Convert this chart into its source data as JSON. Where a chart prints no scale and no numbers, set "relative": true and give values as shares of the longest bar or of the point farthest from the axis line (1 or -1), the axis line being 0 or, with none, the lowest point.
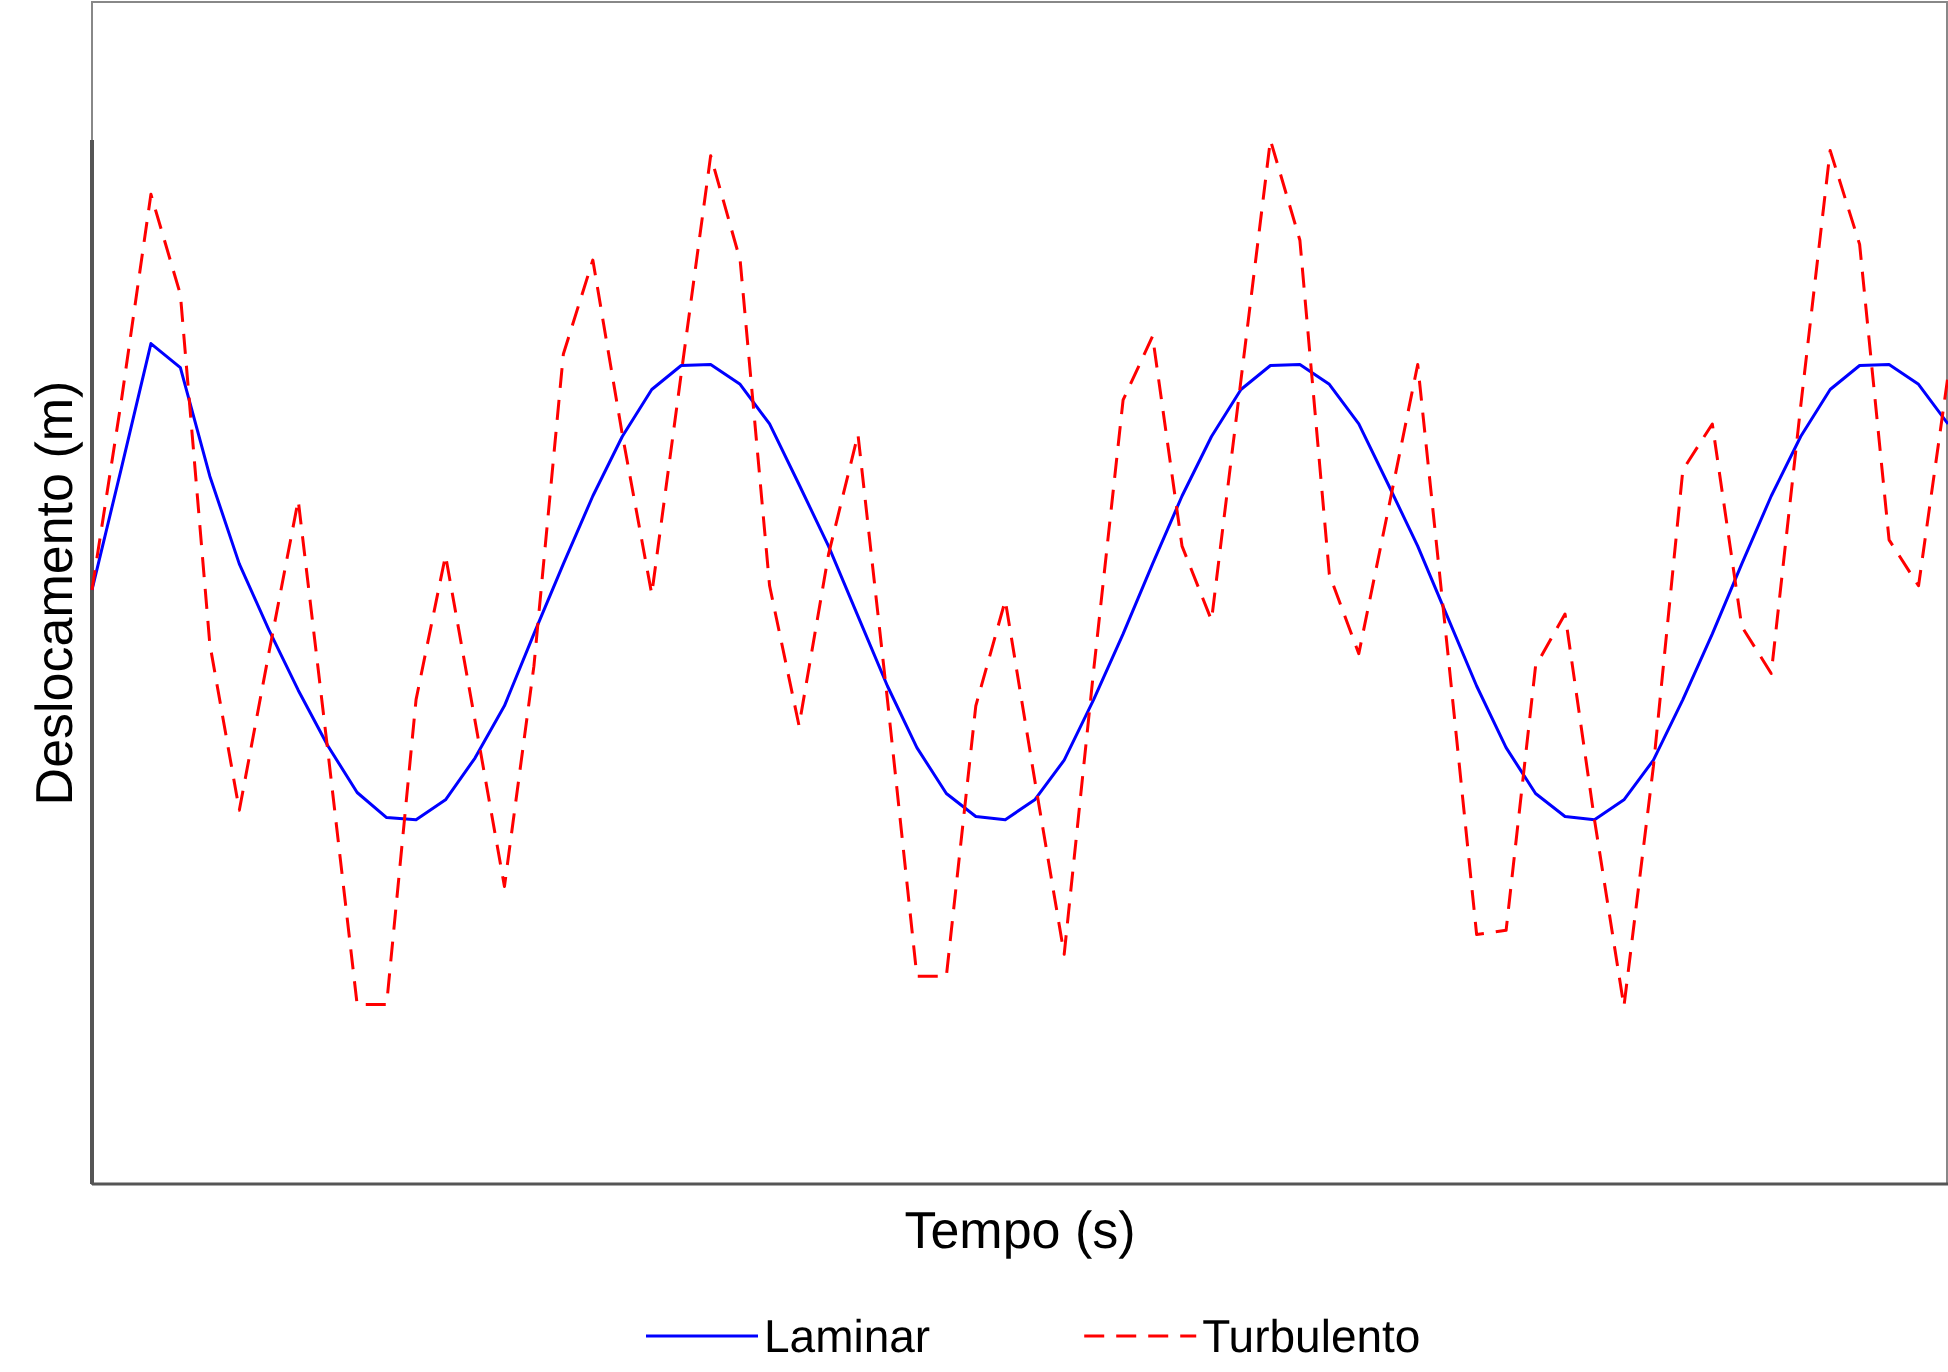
{
  "chart_data": {
    "type": "line",
    "relative": true,
    "xlabel": "Tempo (s)",
    "ylabel": "Deslocamento (m)",
    "legend": "bottom",
    "categories": [
      null,
      null,
      null,
      null,
      null,
      null,
      null,
      null,
      null,
      null,
      null,
      null,
      null,
      null,
      null,
      null,
      null,
      null,
      null,
      null,
      null,
      null,
      null,
      null,
      null,
      null,
      null,
      null,
      null,
      null,
      null,
      null,
      null,
      null,
      null,
      null,
      null,
      null,
      null,
      null,
      null,
      null,
      null,
      null,
      null,
      null,
      null,
      null,
      null,
      null,
      null,
      null,
      null,
      null,
      null,
      null,
      null,
      null,
      null,
      null,
      null,
      null,
      null,
      null
    ],
    "series": [
      {
        "name": "Laminar",
        "color": "#0000ff",
        "line_style": "solid",
        "values": [
          0.569,
          0.686,
          0.805,
          0.782,
          0.678,
          0.594,
          0.531,
          0.473,
          0.42,
          0.375,
          0.351,
          0.349,
          0.368,
          0.408,
          0.458,
          0.527,
          0.594,
          0.659,
          0.716,
          0.761,
          0.784,
          0.785,
          0.766,
          0.728,
          0.67,
          0.611,
          0.544,
          0.477,
          0.418,
          0.374,
          0.352,
          0.349,
          0.368,
          0.406,
          0.464,
          0.527,
          0.594,
          0.659,
          0.716,
          0.761,
          0.784,
          0.785,
          0.766,
          0.728,
          0.67,
          0.611,
          0.544,
          0.477,
          0.418,
          0.374,
          0.352,
          0.349,
          0.368,
          0.406,
          0.464,
          0.527,
          0.594,
          0.659,
          0.716,
          0.761,
          0.784,
          0.785,
          0.766,
          0.728
        ]
      },
      {
        "name": "Turbulento",
        "color": "#ff0000",
        "line_style": "dashed",
        "values": [
          0.569,
          0.751,
          0.948,
          0.852,
          0.517,
          0.358,
          0.508,
          0.655,
          0.416,
          0.172,
          0.172,
          0.464,
          0.602,
          0.444,
          0.285,
          0.496,
          0.795,
          0.885,
          0.718,
          0.565,
          0.776,
          0.985,
          0.885,
          0.573,
          0.439,
          0.603,
          0.718,
          0.464,
          0.199,
          0.199,
          0.458,
          0.559,
          0.387,
          0.22,
          0.492,
          0.751,
          0.812,
          0.611,
          0.54,
          0.77,
          1,
          0.904,
          0.584,
          0.508,
          0.646,
          0.785,
          0.515,
          0.239,
          0.243,
          0.496,
          0.546,
          0.349,
          0.17,
          0.4,
          0.684,
          0.728,
          0.534,
          0.489,
          0.745,
          0.99,
          0.9,
          0.617,
          0.573,
          0.774
        ]
      }
    ]
  }
}
